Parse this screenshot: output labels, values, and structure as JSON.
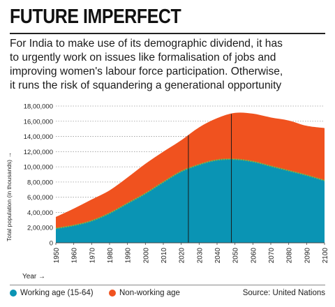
{
  "headline": "FUTURE IMPERFECT",
  "standfirst": [
    "For India to make use of its demographic dividend, it has",
    "to urgently work on issues like formalisation of jobs and",
    "improving women's labour force participation. Otherwise,",
    "it runs the risk of squandering a generational opportunity"
  ],
  "legend": {
    "working": "Working age (15-64)",
    "nonworking": "Non-working age"
  },
  "source": "Source: United Nations",
  "colors": {
    "working": "#0a94b4",
    "nonworking": "#f0521f",
    "band": "#7cc243"
  },
  "chart_data": {
    "type": "area",
    "stacked": true,
    "title": "",
    "xlabel": "Year →",
    "ylabel": "Total population (in thousands) →",
    "x": [
      1950,
      1960,
      1970,
      1980,
      1990,
      2000,
      2010,
      2020,
      2030,
      2040,
      2050,
      2060,
      2070,
      2080,
      2090,
      2100
    ],
    "xlim": [
      1950,
      2100
    ],
    "ylim": [
      0,
      1800000
    ],
    "xticks": [
      "1950",
      "1960",
      "1970",
      "1980",
      "1990",
      "2000",
      "2010",
      "2020",
      "2030",
      "2040",
      "2050",
      "2060",
      "2070",
      "2080",
      "2090",
      "2100"
    ],
    "yticks": [
      "0",
      "2,00,000",
      "4,00,000",
      "6,00,000",
      "8,00,000",
      "10,00,000",
      "12,00,000",
      "14,00,000",
      "16,00,000",
      "18,00,000"
    ],
    "ytick_values": [
      0,
      200000,
      400000,
      600000,
      800000,
      1000000,
      1200000,
      1400000,
      1600000,
      1800000
    ],
    "series": [
      {
        "name": "Working age (15-64)",
        "values": [
          190000,
          230000,
          290000,
          390000,
          520000,
          650000,
          800000,
          940000,
          1030000,
          1090000,
          1100000,
          1070000,
          1010000,
          950000,
          890000,
          820000
        ]
      },
      {
        "name": "Non-working age",
        "values": [
          150000,
          220000,
          280000,
          300000,
          340000,
          390000,
          400000,
          410000,
          490000,
          550000,
          610000,
          630000,
          640000,
          660000,
          650000,
          690000
        ]
      }
    ],
    "vertical_markers": [
      2024,
      2048
    ],
    "grid": "horizontal dotted"
  }
}
